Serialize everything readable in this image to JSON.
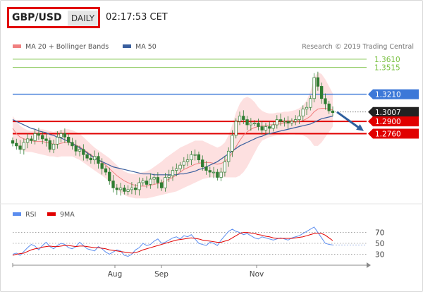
{
  "header": {
    "pair": "GBP/USD",
    "period": "DAILY",
    "time": "02:17:53 CET"
  },
  "credit": "Research © 2019 Trading Central",
  "legend": {
    "ma20": "MA 20 + Bollinger Bands",
    "ma50": "MA 50",
    "rsi": "RSI",
    "ma9": "9MA"
  },
  "colors": {
    "candle": "#2f7d32",
    "bollinger_fill": "#fde0e0",
    "ma20": "#f08080",
    "ma50": "#3a5f9e",
    "resistance_green": "#7ac142",
    "resistance_blue": "#3c78d8",
    "support_red": "#e10000",
    "price_black": "#222222",
    "arrow": "#2e5f9e",
    "rsi_line": "#5b8def",
    "rsi_ma": "#e10000"
  },
  "chart_data": {
    "type": "line",
    "x_ticks": [
      "Aug",
      "Sep",
      "Nov"
    ],
    "ylim": [
      1.195,
      1.369
    ],
    "levels": [
      {
        "value": 1.361,
        "label": "1.3610",
        "kind": "resistance",
        "color": "green"
      },
      {
        "value": 1.3515,
        "label": "1.3515",
        "kind": "resistance",
        "color": "green"
      },
      {
        "value": 1.321,
        "label": "1.3210",
        "kind": "resistance",
        "color": "blue"
      },
      {
        "value": 1.3007,
        "label": "1.3007",
        "kind": "last_price",
        "color": "black"
      },
      {
        "value": 1.29,
        "label": "1.2900",
        "kind": "support",
        "color": "red"
      },
      {
        "value": 1.276,
        "label": "1.2760",
        "kind": "support",
        "color": "red"
      }
    ],
    "price_closes": [
      1.265,
      1.262,
      1.258,
      1.266,
      1.27,
      1.268,
      1.276,
      1.274,
      1.27,
      1.268,
      1.258,
      1.264,
      1.272,
      1.276,
      1.272,
      1.266,
      1.262,
      1.256,
      1.258,
      1.252,
      1.248,
      1.246,
      1.25,
      1.242,
      1.236,
      1.232,
      1.222,
      1.214,
      1.212,
      1.214,
      1.21,
      1.212,
      1.214,
      1.212,
      1.22,
      1.222,
      1.218,
      1.224,
      1.226,
      1.22,
      1.214,
      1.226,
      1.228,
      1.234,
      1.236,
      1.24,
      1.244,
      1.246,
      1.252,
      1.252,
      1.246,
      1.238,
      1.234,
      1.232,
      1.232,
      1.226,
      1.232,
      1.244,
      1.256,
      1.274,
      1.29,
      1.296,
      1.292,
      1.286,
      1.288,
      1.288,
      1.284,
      1.28,
      1.284,
      1.282,
      1.286,
      1.292,
      1.29,
      1.29,
      1.288,
      1.29,
      1.292,
      1.296,
      1.304,
      1.306,
      1.316,
      1.34,
      1.33,
      1.316,
      1.31,
      1.302,
      1.3
    ],
    "ma20": [
      1.282,
      1.276,
      1.272,
      1.27,
      1.269,
      1.268,
      1.267,
      1.267,
      1.267,
      1.266,
      1.265,
      1.264,
      1.264,
      1.265,
      1.266,
      1.266,
      1.265,
      1.263,
      1.261,
      1.258,
      1.255,
      1.252,
      1.249,
      1.246,
      1.243,
      1.24,
      1.236,
      1.232,
      1.228,
      1.225,
      1.222,
      1.22,
      1.218,
      1.217,
      1.216,
      1.216,
      1.216,
      1.217,
      1.218,
      1.219,
      1.22,
      1.222,
      1.224,
      1.226,
      1.229,
      1.232,
      1.235,
      1.237,
      1.239,
      1.241,
      1.242,
      1.243,
      1.243,
      1.243,
      1.242,
      1.241,
      1.242,
      1.244,
      1.248,
      1.254,
      1.261,
      1.268,
      1.274,
      1.278,
      1.281,
      1.283,
      1.284,
      1.285,
      1.285,
      1.286,
      1.286,
      1.287,
      1.287,
      1.288,
      1.288,
      1.289,
      1.289,
      1.29,
      1.291,
      1.293,
      1.296,
      1.301,
      1.304,
      1.305,
      1.305,
      1.304,
      1.303
    ],
    "ma50": [
      1.292,
      1.29,
      1.288,
      1.286,
      1.284,
      1.282,
      1.281,
      1.279,
      1.278,
      1.277,
      1.275,
      1.274,
      1.272,
      1.271,
      1.269,
      1.267,
      1.265,
      1.262,
      1.26,
      1.257,
      1.254,
      1.251,
      1.248,
      1.246,
      1.244,
      1.242,
      1.24,
      1.238,
      1.237,
      1.236,
      1.235,
      1.234,
      1.233,
      1.232,
      1.231,
      1.23,
      1.23,
      1.23,
      1.229,
      1.229,
      1.229,
      1.229,
      1.229,
      1.229,
      1.229,
      1.23,
      1.23,
      1.231,
      1.232,
      1.233,
      1.235,
      1.236,
      1.238,
      1.24,
      1.242,
      1.244,
      1.247,
      1.25,
      1.253,
      1.256,
      1.259,
      1.262,
      1.264,
      1.266,
      1.268,
      1.27,
      1.272,
      1.273,
      1.275,
      1.276,
      1.277,
      1.278,
      1.279,
      1.28,
      1.281,
      1.282,
      1.283,
      1.284,
      1.285,
      1.286,
      1.287,
      1.289,
      1.291,
      1.293,
      1.294,
      1.295,
      1.296
    ],
    "bollinger_upper": [
      1.296,
      1.29,
      1.285,
      1.282,
      1.28,
      1.279,
      1.28,
      1.281,
      1.281,
      1.28,
      1.279,
      1.278,
      1.279,
      1.28,
      1.281,
      1.281,
      1.28,
      1.278,
      1.276,
      1.272,
      1.268,
      1.264,
      1.26,
      1.257,
      1.254,
      1.251,
      1.248,
      1.244,
      1.24,
      1.236,
      1.233,
      1.231,
      1.23,
      1.23,
      1.231,
      1.232,
      1.233,
      1.235,
      1.238,
      1.241,
      1.244,
      1.248,
      1.251,
      1.254,
      1.257,
      1.26,
      1.262,
      1.264,
      1.266,
      1.268,
      1.268,
      1.268,
      1.266,
      1.264,
      1.262,
      1.26,
      1.262,
      1.266,
      1.274,
      1.286,
      1.3,
      1.31,
      1.316,
      1.318,
      1.316,
      1.312,
      1.306,
      1.302,
      1.3,
      1.299,
      1.299,
      1.3,
      1.3,
      1.301,
      1.301,
      1.302,
      1.303,
      1.305,
      1.308,
      1.314,
      1.324,
      1.34,
      1.346,
      1.344,
      1.338,
      1.33,
      1.322
    ],
    "bollinger_lower": [
      1.268,
      1.262,
      1.258,
      1.256,
      1.255,
      1.255,
      1.254,
      1.253,
      1.252,
      1.251,
      1.25,
      1.25,
      1.249,
      1.25,
      1.25,
      1.25,
      1.25,
      1.248,
      1.246,
      1.243,
      1.24,
      1.237,
      1.234,
      1.231,
      1.228,
      1.225,
      1.221,
      1.216,
      1.212,
      1.209,
      1.206,
      1.204,
      1.203,
      1.202,
      1.202,
      1.202,
      1.202,
      1.203,
      1.204,
      1.205,
      1.206,
      1.207,
      1.208,
      1.209,
      1.21,
      1.212,
      1.214,
      1.216,
      1.218,
      1.22,
      1.222,
      1.224,
      1.225,
      1.226,
      1.226,
      1.226,
      1.226,
      1.226,
      1.226,
      1.226,
      1.226,
      1.228,
      1.232,
      1.238,
      1.246,
      1.254,
      1.262,
      1.268,
      1.27,
      1.272,
      1.273,
      1.274,
      1.274,
      1.275,
      1.275,
      1.276,
      1.275,
      1.275,
      1.274,
      1.272,
      1.268,
      1.262,
      1.262,
      1.266,
      1.272,
      1.278,
      1.284
    ],
    "projection": {
      "from": 1.3007,
      "to": 1.279
    },
    "rsi": {
      "levels": [
        70,
        50,
        30
      ],
      "ylim": [
        15,
        85
      ],
      "values": [
        30,
        32,
        28,
        35,
        42,
        48,
        45,
        38,
        46,
        52,
        44,
        40,
        46,
        50,
        48,
        42,
        40,
        44,
        52,
        46,
        40,
        38,
        36,
        44,
        40,
        34,
        30,
        34,
        38,
        36,
        28,
        26,
        30,
        38,
        42,
        50,
        46,
        48,
        54,
        58,
        50,
        52,
        56,
        60,
        62,
        58,
        64,
        62,
        66,
        58,
        50,
        48,
        46,
        52,
        50,
        46,
        56,
        64,
        72,
        76,
        72,
        70,
        66,
        68,
        64,
        60,
        58,
        62,
        60,
        58,
        56,
        58,
        60,
        58,
        56,
        60,
        62,
        64,
        68,
        72,
        76,
        80,
        70,
        60,
        50,
        48,
        47
      ],
      "ma9": [
        28,
        30,
        31,
        32,
        35,
        38,
        40,
        41,
        43,
        44,
        45,
        44,
        44,
        45,
        46,
        46,
        45,
        44,
        45,
        45,
        44,
        43,
        42,
        42,
        41,
        40,
        38,
        37,
        36,
        35,
        34,
        33,
        32,
        33,
        35,
        38,
        40,
        42,
        44,
        46,
        48,
        50,
        52,
        54,
        56,
        57,
        58,
        59,
        60,
        59,
        58,
        56,
        55,
        54,
        53,
        52,
        52,
        54,
        56,
        60,
        64,
        68,
        70,
        70,
        69,
        68,
        66,
        65,
        63,
        62,
        60,
        59,
        59,
        59,
        59,
        59,
        60,
        61,
        62,
        64,
        66,
        68,
        69,
        68,
        65,
        60,
        55
      ]
    }
  }
}
